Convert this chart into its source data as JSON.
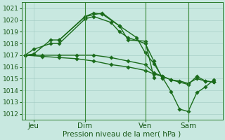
{
  "bg_color": "#c8e8e0",
  "grid_color": "#a0c8c0",
  "line_color": "#1a6b1a",
  "marker_color": "#1a6b1a",
  "xlabel": "Pression niveau de la mer( hPa )",
  "ylim": [
    1011.5,
    1021.5
  ],
  "yticks": [
    1012,
    1013,
    1014,
    1015,
    1016,
    1017,
    1018,
    1019,
    1020,
    1021
  ],
  "xtick_labels": [
    "Jeu",
    "Dim",
    "Ven",
    "Sam"
  ],
  "xtick_positions": [
    0.5,
    3.5,
    7.0,
    9.5
  ],
  "xlim": [
    -0.2,
    11.5
  ],
  "line_a_x": [
    0.0,
    0.5,
    1.5,
    2.0,
    3.5,
    4.0,
    4.5,
    5.5,
    6.0,
    7.0,
    7.5
  ],
  "line_a_y": [
    1017.0,
    1017.1,
    1018.3,
    1018.3,
    1020.3,
    1020.6,
    1020.5,
    1019.5,
    1018.3,
    1018.2,
    1015.1
  ],
  "line_b_x": [
    0.0,
    0.5,
    1.5,
    2.0,
    3.5,
    4.0,
    5.0,
    5.5,
    6.0,
    7.0,
    7.5,
    8.0
  ],
  "line_b_y": [
    1017.0,
    1017.5,
    1018.0,
    1018.0,
    1020.1,
    1020.3,
    1019.8,
    1019.0,
    1018.5,
    1018.0,
    1016.5,
    1015.0
  ],
  "line_c_x": [
    0.0,
    1.0,
    2.0,
    3.0,
    4.0,
    5.0,
    6.0,
    7.0,
    7.5,
    8.0,
    8.5,
    9.0,
    9.5,
    10.0,
    10.5,
    11.0
  ],
  "line_c_y": [
    1017.0,
    1017.0,
    1017.0,
    1017.0,
    1017.0,
    1016.8,
    1016.5,
    1016.2,
    1015.5,
    1015.2,
    1014.9,
    1014.8,
    1014.6,
    1015.0,
    1014.8,
    1014.7
  ],
  "line_d_x": [
    0.0,
    1.0,
    2.0,
    3.0,
    4.0,
    5.0,
    6.0,
    7.0,
    7.5,
    8.0,
    8.5,
    9.0,
    9.5,
    10.0,
    10.5,
    11.0
  ],
  "line_d_y": [
    1017.0,
    1016.9,
    1016.8,
    1016.7,
    1016.5,
    1016.2,
    1016.0,
    1015.7,
    1015.4,
    1015.2,
    1014.9,
    1014.7,
    1014.5,
    1015.2,
    1014.8,
    1014.7
  ],
  "line_e_x": [
    2.0,
    3.5,
    4.5,
    5.5,
    6.5,
    7.0,
    7.5,
    8.0,
    8.5,
    9.0,
    9.5,
    10.0,
    10.5,
    11.0
  ],
  "line_e_y": [
    1018.3,
    1020.3,
    1020.6,
    1019.5,
    1018.5,
    1017.2,
    1016.3,
    1015.1,
    1013.9,
    1012.4,
    1012.2,
    1013.8,
    1014.3,
    1014.9
  ],
  "vline_x": [
    0.0,
    3.5,
    7.0,
    9.5
  ],
  "xlabel_fontsize": 7.5,
  "ytick_fontsize": 6.5,
  "xtick_fontsize": 7.5
}
